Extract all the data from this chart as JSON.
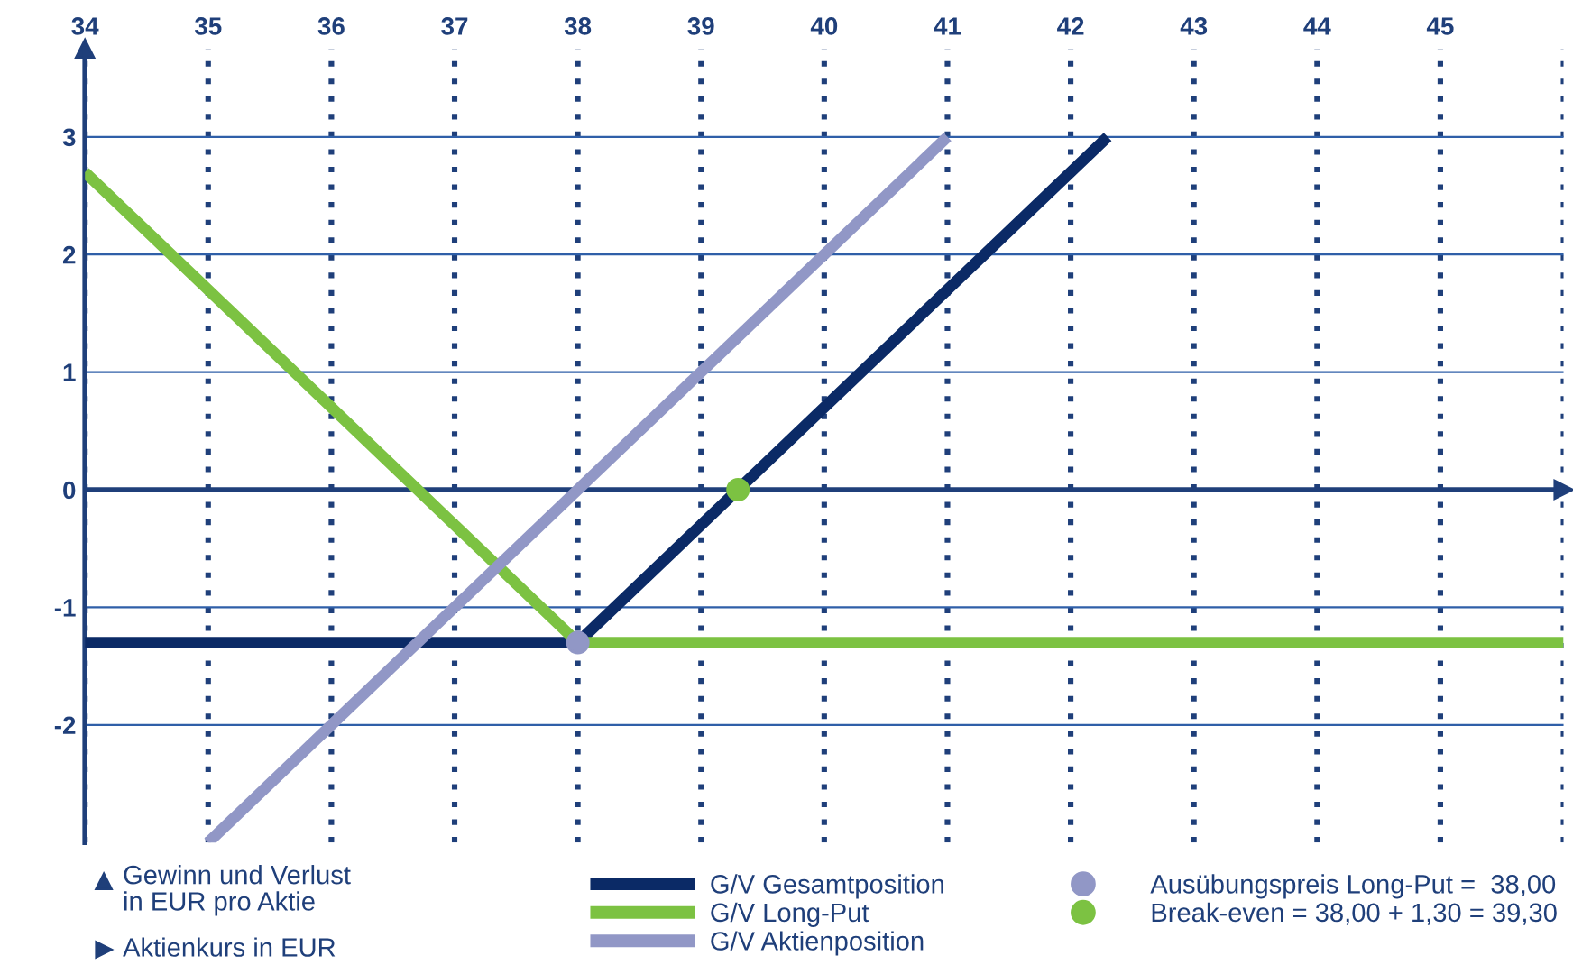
{
  "chart_data": {
    "type": "line",
    "annotations": [
      "Gewinn und Verlust\nin EUR pro Aktie",
      "Aktienkurs in EUR"
    ],
    "ref_lines": [
      {
        "axis": "y",
        "value": 0,
        "color": "#1f3f7a"
      }
    ],
    "xlim": [
      34,
      46
    ],
    "ylim": [
      -3,
      3.75
    ],
    "xticks": [
      34,
      35,
      36,
      37,
      38,
      39,
      40,
      41,
      42,
      43,
      44,
      45,
      {
        "value": 46,
        "label": null
      }
    ],
    "yticks": [
      -2,
      -1,
      0,
      1,
      2,
      3
    ],
    "grid": true,
    "legend": "bottom",
    "marker": "none",
    "line_style": "solid",
    "series": [
      {
        "name": "G/V Gesamtposition",
        "color": "#0b2a66",
        "x": [
          34,
          38,
          42.3
        ],
        "values": [
          -1.3,
          -1.3,
          3
        ]
      },
      {
        "name": "G/V Long-Put",
        "color": "#7cc242",
        "x": [
          34,
          38,
          46
        ],
        "values": [
          2.7,
          -1.3,
          -1.3
        ]
      },
      {
        "name": "G/V Aktienposition",
        "color": "#9197c6",
        "x": [
          35,
          41
        ],
        "values": [
          -3,
          3
        ]
      },
      {
        "name": "Ausübungspreis Long-Put =  38,00",
        "type": "scatter",
        "marker": "circle",
        "color": "#9197c6",
        "x": [
          38
        ],
        "values": [
          -1.3
        ]
      },
      {
        "name": "Break-even = 38,00 + 1,30 = 39,30",
        "type": "scatter",
        "marker": "circle",
        "color": "#7cc242",
        "x": [
          39.3
        ],
        "values": [
          0
        ]
      }
    ]
  }
}
